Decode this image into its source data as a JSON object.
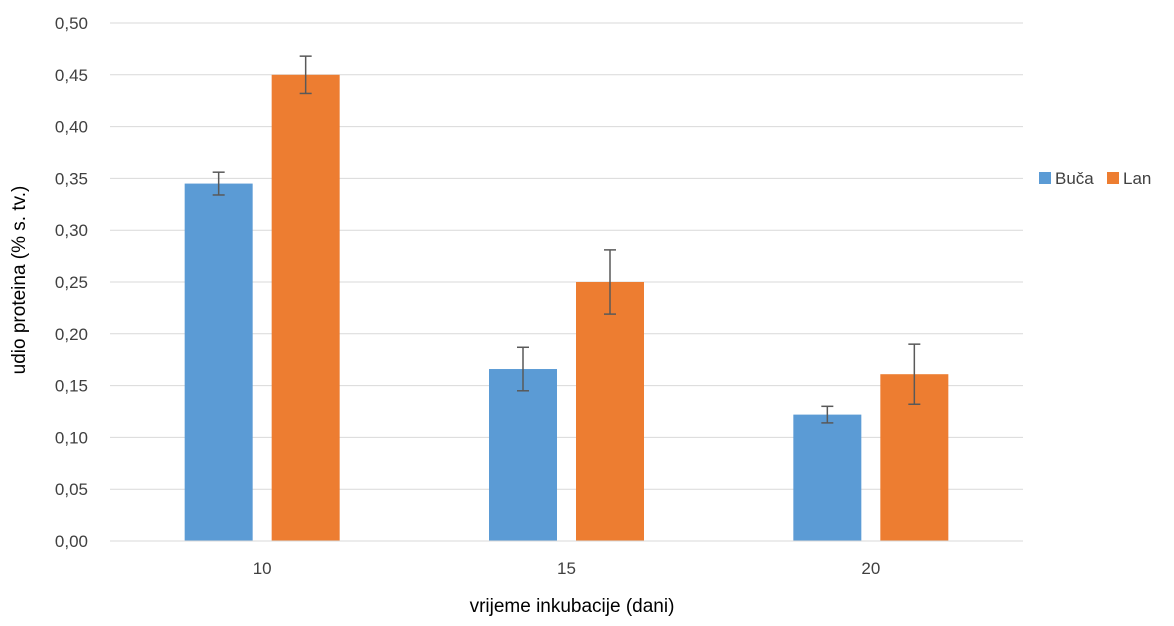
{
  "chart_data": {
    "type": "bar",
    "title": "",
    "xlabel": "vrijeme inkubacije (dani)",
    "ylabel": "udio proteina (% s. tv.)",
    "categories": [
      "10",
      "15",
      "20"
    ],
    "ylim": [
      0,
      0.5
    ],
    "yticks": [
      "0,00",
      "0,05",
      "0,10",
      "0,15",
      "0,20",
      "0,25",
      "0,30",
      "0,35",
      "0,40",
      "0,45",
      "0,50"
    ],
    "grid": true,
    "legend_position": "right",
    "series": [
      {
        "name": "Buča",
        "color": "#5B9BD5",
        "values": [
          0.345,
          0.166,
          0.122
        ],
        "error": [
          0.011,
          0.021,
          0.008
        ]
      },
      {
        "name": "Lan",
        "color": "#ED7D31",
        "values": [
          0.45,
          0.25,
          0.161
        ],
        "error": [
          0.018,
          0.031,
          0.029
        ]
      }
    ]
  }
}
